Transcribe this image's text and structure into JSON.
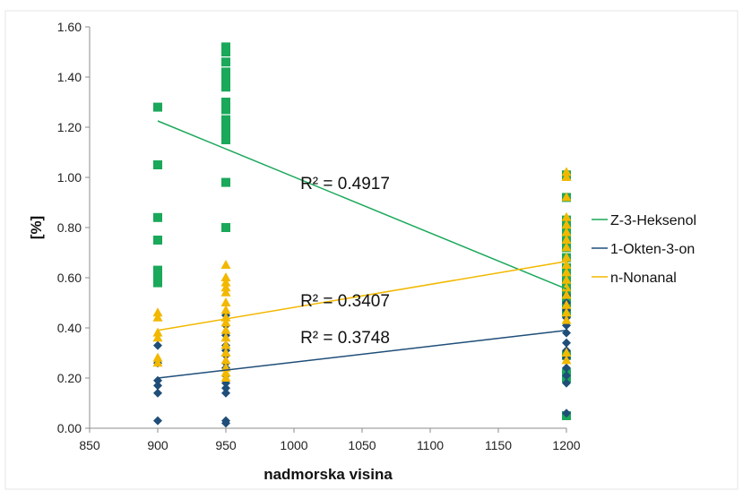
{
  "chart_data": {
    "type": "scatter",
    "xlabel": "nadmorska visina",
    "ylabel": "[%]",
    "xlim": [
      850,
      1200
    ],
    "ylim": [
      0.0,
      1.6
    ],
    "x_ticks": [
      "850",
      "900",
      "950",
      "1000",
      "1050",
      "1100",
      "1150",
      "1200"
    ],
    "y_ticks": [
      "0.00",
      "0.20",
      "0.40",
      "0.60",
      "0.80",
      "1.00",
      "1.20",
      "1.40",
      "1.60"
    ],
    "grid": false,
    "legend_position": "right",
    "series": [
      {
        "name": "Z-3-Heksenol",
        "color": "#1aa85a",
        "marker": "square",
        "points": [
          [
            900,
            1.28
          ],
          [
            900,
            1.05
          ],
          [
            900,
            0.84
          ],
          [
            900,
            0.75
          ],
          [
            900,
            0.63
          ],
          [
            900,
            0.61
          ],
          [
            900,
            0.58
          ],
          [
            950,
            1.52
          ],
          [
            950,
            1.5
          ],
          [
            950,
            1.46
          ],
          [
            950,
            1.42
          ],
          [
            950,
            1.39
          ],
          [
            950,
            1.36
          ],
          [
            950,
            1.3
          ],
          [
            950,
            1.27
          ],
          [
            950,
            1.23
          ],
          [
            950,
            1.2
          ],
          [
            950,
            1.17
          ],
          [
            950,
            1.15
          ],
          [
            950,
            0.98
          ],
          [
            950,
            0.8
          ],
          [
            1200,
            1.01
          ],
          [
            1200,
            0.92
          ],
          [
            1200,
            0.83
          ],
          [
            1200,
            0.8
          ],
          [
            1200,
            0.77
          ],
          [
            1200,
            0.74
          ],
          [
            1200,
            0.72
          ],
          [
            1200,
            0.68
          ],
          [
            1200,
            0.64
          ],
          [
            1200,
            0.61
          ],
          [
            1200,
            0.58
          ],
          [
            1200,
            0.56
          ],
          [
            1200,
            0.53
          ],
          [
            1200,
            0.5
          ],
          [
            1200,
            0.46
          ],
          [
            1200,
            0.29
          ],
          [
            1200,
            0.22
          ],
          [
            1200,
            0.2
          ],
          [
            1200,
            0.05
          ]
        ],
        "trendline": {
          "x": [
            900,
            1200
          ],
          "y": [
            1.225,
            0.555
          ]
        },
        "r2_label": "R² = 0.4917"
      },
      {
        "name": "1-Okten-3-on",
        "color": "#1f4e79",
        "marker": "diamond",
        "points": [
          [
            900,
            0.33
          ],
          [
            900,
            0.26
          ],
          [
            900,
            0.19
          ],
          [
            900,
            0.17
          ],
          [
            900,
            0.14
          ],
          [
            900,
            0.03
          ],
          [
            950,
            0.45
          ],
          [
            950,
            0.41
          ],
          [
            950,
            0.37
          ],
          [
            950,
            0.33
          ],
          [
            950,
            0.31
          ],
          [
            950,
            0.29
          ],
          [
            950,
            0.26
          ],
          [
            950,
            0.24
          ],
          [
            950,
            0.21
          ],
          [
            950,
            0.18
          ],
          [
            950,
            0.16
          ],
          [
            950,
            0.14
          ],
          [
            950,
            0.03
          ],
          [
            950,
            0.02
          ],
          [
            1200,
            0.53
          ],
          [
            1200,
            0.5
          ],
          [
            1200,
            0.47
          ],
          [
            1200,
            0.44
          ],
          [
            1200,
            0.41
          ],
          [
            1200,
            0.38
          ],
          [
            1200,
            0.34
          ],
          [
            1200,
            0.31
          ],
          [
            1200,
            0.28
          ],
          [
            1200,
            0.24
          ],
          [
            1200,
            0.21
          ],
          [
            1200,
            0.18
          ],
          [
            1200,
            0.06
          ]
        ],
        "trendline": {
          "x": [
            900,
            1200
          ],
          "y": [
            0.2,
            0.39
          ]
        },
        "r2_label": "R² = 0.3407"
      },
      {
        "name": "n-Nonanal",
        "color": "#f2b800",
        "marker": "triangle",
        "points": [
          [
            900,
            0.46
          ],
          [
            900,
            0.44
          ],
          [
            900,
            0.38
          ],
          [
            900,
            0.36
          ],
          [
            900,
            0.28
          ],
          [
            900,
            0.26
          ],
          [
            950,
            0.65
          ],
          [
            950,
            0.6
          ],
          [
            950,
            0.58
          ],
          [
            950,
            0.56
          ],
          [
            950,
            0.54
          ],
          [
            950,
            0.5
          ],
          [
            950,
            0.47
          ],
          [
            950,
            0.44
          ],
          [
            950,
            0.42
          ],
          [
            950,
            0.39
          ],
          [
            950,
            0.36
          ],
          [
            950,
            0.33
          ],
          [
            950,
            0.3
          ],
          [
            950,
            0.27
          ],
          [
            950,
            0.24
          ],
          [
            950,
            0.22
          ],
          [
            950,
            0.2
          ],
          [
            1200,
            1.02
          ],
          [
            1200,
            1.0
          ],
          [
            1200,
            0.92
          ],
          [
            1200,
            0.84
          ],
          [
            1200,
            0.81
          ],
          [
            1200,
            0.78
          ],
          [
            1200,
            0.75
          ],
          [
            1200,
            0.72
          ],
          [
            1200,
            0.68
          ],
          [
            1200,
            0.65
          ],
          [
            1200,
            0.62
          ],
          [
            1200,
            0.59
          ],
          [
            1200,
            0.56
          ],
          [
            1200,
            0.53
          ],
          [
            1200,
            0.49
          ],
          [
            1200,
            0.46
          ],
          [
            1200,
            0.43
          ],
          [
            1200,
            0.3
          ],
          [
            1200,
            0.27
          ]
        ],
        "trendline": {
          "x": [
            900,
            1200
          ],
          "y": [
            0.39,
            0.665
          ]
        },
        "r2_label": "R² = 0.3748"
      }
    ]
  }
}
